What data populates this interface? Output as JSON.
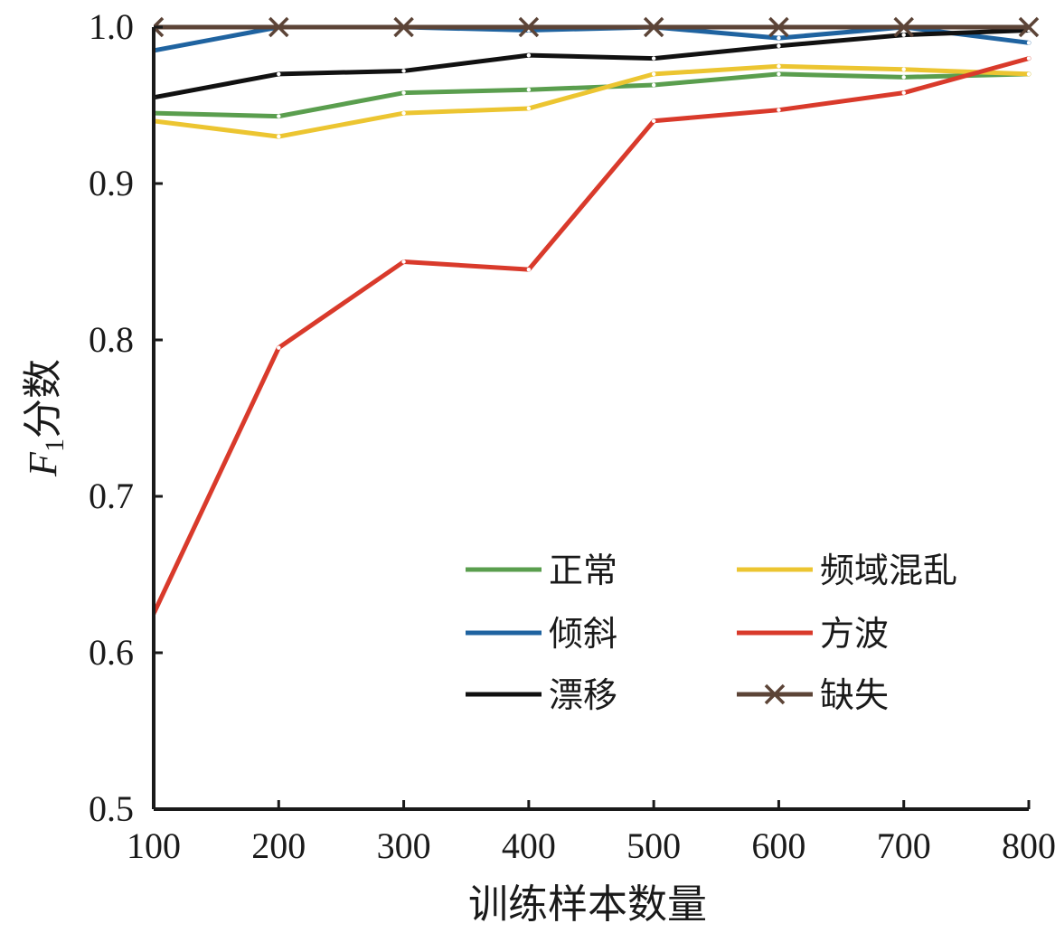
{
  "chart_data": {
    "type": "line",
    "xlabel": "训练样本数量",
    "ylabel": {
      "italic_part": "F",
      "subscript": "1",
      "rest": "分数"
    },
    "x": [
      100,
      200,
      300,
      400,
      500,
      600,
      700,
      800
    ],
    "xlim": [
      100,
      800
    ],
    "ylim": [
      0.5,
      1.0
    ],
    "xticks": [
      "100",
      "200",
      "300",
      "400",
      "500",
      "600",
      "700",
      "800"
    ],
    "yticks": [
      "0.5",
      "0.6",
      "0.7",
      "0.8",
      "0.9",
      "1.0"
    ],
    "grid": false,
    "legend_position": "lower-right",
    "legend_columns": 2,
    "series": [
      {
        "name": "正常",
        "color": "#5a9e4e",
        "marker": "none",
        "values": [
          0.945,
          0.943,
          0.958,
          0.96,
          0.963,
          0.97,
          0.968,
          0.97
        ]
      },
      {
        "name": "倾斜",
        "color": "#1f63a0",
        "marker": "none",
        "values": [
          0.985,
          1.0,
          1.0,
          0.998,
          1.0,
          0.993,
          1.0,
          0.99
        ]
      },
      {
        "name": "漂移",
        "color": "#111111",
        "marker": "none",
        "values": [
          0.955,
          0.97,
          0.972,
          0.982,
          0.98,
          0.988,
          0.995,
          0.998
        ]
      },
      {
        "name": "频域混乱",
        "color": "#ecc531",
        "marker": "none",
        "values": [
          0.94,
          0.93,
          0.945,
          0.948,
          0.97,
          0.975,
          0.973,
          0.97
        ]
      },
      {
        "name": "方波",
        "color": "#d93a2b",
        "marker": "none",
        "values": [
          0.625,
          0.795,
          0.85,
          0.845,
          0.94,
          0.947,
          0.958,
          0.98
        ]
      },
      {
        "name": "缺失",
        "color": "#5c4437",
        "marker": "x",
        "values": [
          1.0,
          1.0,
          1.0,
          1.0,
          1.0,
          1.0,
          1.0,
          1.0
        ]
      }
    ]
  }
}
